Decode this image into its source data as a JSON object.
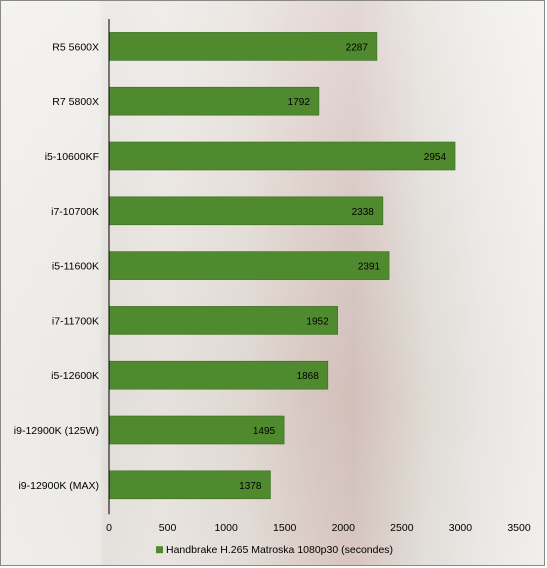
{
  "chart_data": {
    "type": "bar",
    "orientation": "horizontal",
    "title": "",
    "xlabel": "",
    "ylabel": "",
    "categories": [
      "R5 5600X",
      "R7 5800X",
      "i5-10600KF",
      "i7-10700K",
      "i5-11600K",
      "i7-11700K",
      "i5-12600K",
      "i9-12900K (125W)",
      "i9-12900K (MAX)"
    ],
    "series": [
      {
        "name": "Handbrake H.265 Matroska 1080p30 (secondes)",
        "values": [
          2287,
          1792,
          2954,
          2338,
          2391,
          1952,
          1868,
          1495,
          1378
        ],
        "color": "#4f8a2e"
      }
    ],
    "xlim": [
      0,
      3500
    ],
    "xticks": [
      "0",
      "500",
      "1000",
      "1500",
      "2000",
      "2500",
      "3000",
      "3500"
    ],
    "data_labels": [
      "2287",
      "1792",
      "2954",
      "2338",
      "2391",
      "1952",
      "1868",
      "1495",
      "1378"
    ],
    "grid": false,
    "legend": "bottom"
  }
}
